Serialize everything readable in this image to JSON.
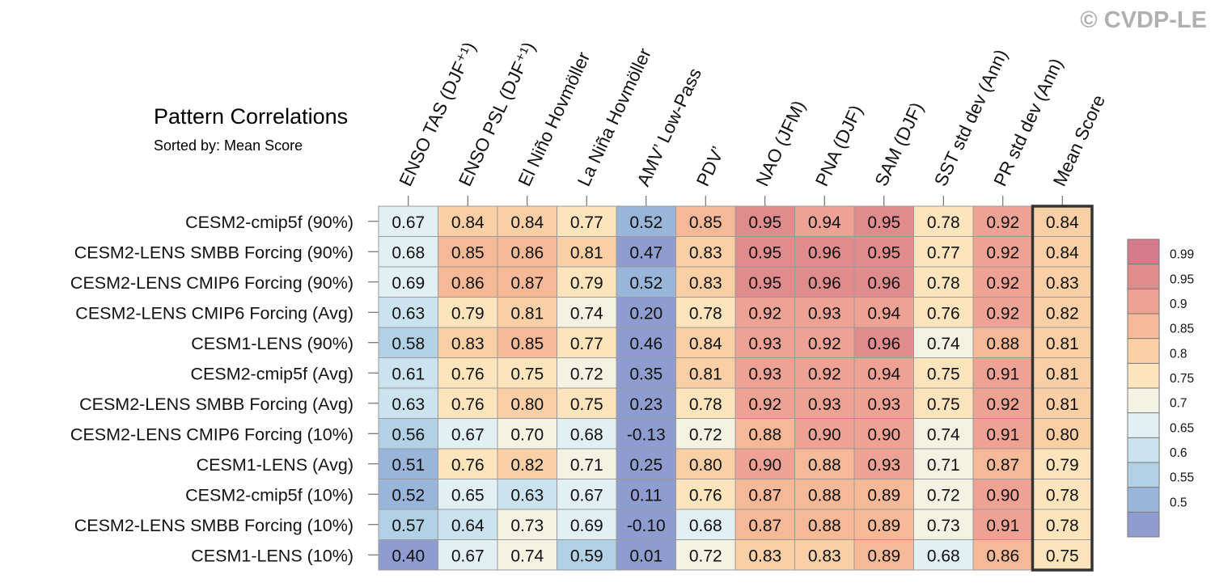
{
  "chart_data": {
    "type": "heatmap",
    "title": "Pattern Correlations",
    "subtitle": "Sorted by: Mean Score",
    "watermark": "© CVDP-LE",
    "columns": [
      "ENSO TAS (DJF⁺¹)",
      "ENSO PSL (DJF⁺¹)",
      "El Niño Hovmöller",
      "La Niña Hovmöller",
      "AMV’ Low-Pass",
      "PDV’",
      "NAO (JFM)",
      "PNA (DJF)",
      "SAM (DJF)",
      "SST std dev (Ann)",
      "PR std dev (Ann)",
      "Mean Score"
    ],
    "highlighted_column": "Mean Score",
    "rows": [
      "CESM2-cmip5f (90%)",
      "CESM2-LENS SMBB Forcing (90%)",
      "CESM2-LENS CMIP6 Forcing (90%)",
      "CESM2-LENS CMIP6 Forcing (Avg)",
      "CESM1-LENS (90%)",
      "CESM2-cmip5f (Avg)",
      "CESM2-LENS SMBB Forcing (Avg)",
      "CESM2-LENS CMIP6 Forcing (10%)",
      "CESM1-LENS (Avg)",
      "CESM2-cmip5f (10%)",
      "CESM2-LENS SMBB Forcing (10%)",
      "CESM1-LENS (10%)"
    ],
    "values": [
      [
        "0.67",
        "0.84",
        "0.84",
        "0.77",
        "0.52",
        "0.85",
        "0.95",
        "0.94",
        "0.95",
        "0.78",
        "0.92",
        "0.84"
      ],
      [
        "0.68",
        "0.85",
        "0.86",
        "0.81",
        "0.47",
        "0.83",
        "0.95",
        "0.96",
        "0.95",
        "0.77",
        "0.92",
        "0.84"
      ],
      [
        "0.69",
        "0.86",
        "0.87",
        "0.79",
        "0.52",
        "0.83",
        "0.95",
        "0.96",
        "0.96",
        "0.78",
        "0.92",
        "0.83"
      ],
      [
        "0.63",
        "0.79",
        "0.81",
        "0.74",
        "0.20",
        "0.78",
        "0.92",
        "0.93",
        "0.94",
        "0.76",
        "0.92",
        "0.82"
      ],
      [
        "0.58",
        "0.83",
        "0.85",
        "0.77",
        "0.46",
        "0.84",
        "0.93",
        "0.92",
        "0.96",
        "0.74",
        "0.88",
        "0.81"
      ],
      [
        "0.61",
        "0.76",
        "0.75",
        "0.72",
        "0.35",
        "0.81",
        "0.93",
        "0.92",
        "0.94",
        "0.75",
        "0.91",
        "0.81"
      ],
      [
        "0.63",
        "0.76",
        "0.80",
        "0.75",
        "0.23",
        "0.78",
        "0.92",
        "0.93",
        "0.93",
        "0.75",
        "0.92",
        "0.81"
      ],
      [
        "0.56",
        "0.67",
        "0.70",
        "0.68",
        "-0.13",
        "0.72",
        "0.88",
        "0.90",
        "0.90",
        "0.74",
        "0.91",
        "0.80"
      ],
      [
        "0.51",
        "0.76",
        "0.82",
        "0.71",
        "0.25",
        "0.80",
        "0.90",
        "0.88",
        "0.93",
        "0.71",
        "0.87",
        "0.79"
      ],
      [
        "0.52",
        "0.65",
        "0.63",
        "0.67",
        "0.11",
        "0.76",
        "0.87",
        "0.88",
        "0.89",
        "0.72",
        "0.90",
        "0.78"
      ],
      [
        "0.57",
        "0.64",
        "0.73",
        "0.69",
        "-0.10",
        "0.68",
        "0.87",
        "0.88",
        "0.89",
        "0.73",
        "0.91",
        "0.78"
      ],
      [
        "0.40",
        "0.67",
        "0.74",
        "0.59",
        "0.01",
        "0.72",
        "0.83",
        "0.83",
        "0.89",
        "0.68",
        "0.86",
        "0.75"
      ]
    ],
    "colorbar": {
      "labels": [
        "0.99",
        "0.95",
        "0.9",
        "0.85",
        "0.8",
        "0.75",
        "0.7",
        "0.65",
        "0.6",
        "0.55",
        "0.5"
      ],
      "colors": [
        "#d67b8b",
        "#e08c8c",
        "#eea293",
        "#f6b997",
        "#f9d0a6",
        "#fce5bd",
        "#f4f2e2",
        "#e3f0f3",
        "#cae3ee",
        "#b2d1e5",
        "#9ab5da",
        "#8e9ccf"
      ]
    }
  }
}
